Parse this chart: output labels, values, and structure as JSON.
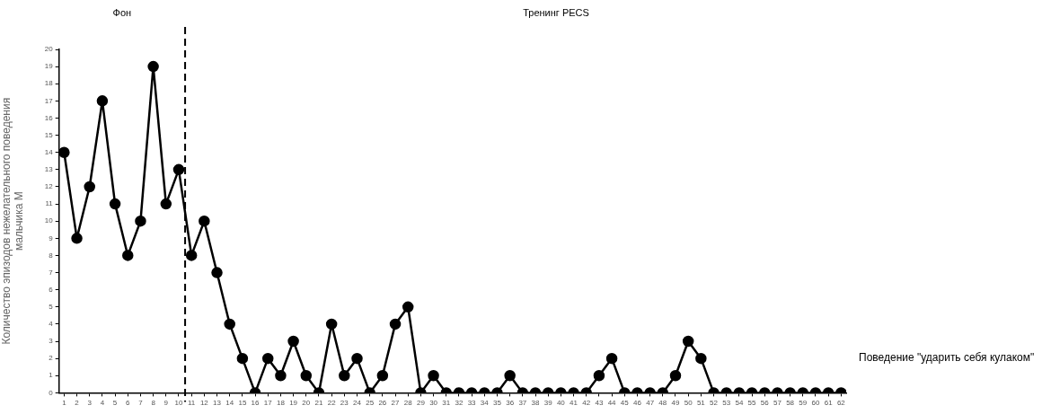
{
  "chart_data": {
    "type": "line",
    "ylabel": "Количество эпизодов нежелательного поведения мальчика М",
    "x": [
      1,
      2,
      3,
      4,
      5,
      6,
      7,
      8,
      9,
      10,
      11,
      12,
      13,
      14,
      15,
      16,
      17,
      18,
      19,
      20,
      21,
      22,
      23,
      24,
      25,
      26,
      27,
      28,
      29,
      30,
      31,
      32,
      33,
      34,
      35,
      36,
      37,
      38,
      39,
      40,
      41,
      42,
      43,
      44,
      45,
      46,
      47,
      48,
      49,
      50,
      51,
      52,
      53,
      54,
      55,
      56,
      57,
      58,
      59,
      60,
      61,
      62
    ],
    "series": [
      {
        "name": "Поведение \"ударить себя кулаком\"",
        "color": "#000000",
        "values": [
          14,
          9,
          12,
          17,
          11,
          8,
          10,
          19,
          11,
          13,
          8,
          10,
          7,
          4,
          2,
          0,
          2,
          1,
          3,
          1,
          0,
          4,
          1,
          2,
          0,
          1,
          4,
          5,
          0,
          1,
          0,
          0,
          0,
          0,
          0,
          1,
          0,
          0,
          0,
          0,
          0,
          0,
          1,
          2,
          0,
          0,
          0,
          0,
          1,
          3,
          2,
          0,
          0,
          0,
          0,
          0,
          0,
          0,
          0,
          0,
          0,
          0
        ]
      }
    ],
    "xlim": [
      0.6,
      62.4
    ],
    "xticks": [
      1,
      2,
      3,
      4,
      5,
      6,
      7,
      8,
      9,
      10,
      11,
      12,
      13,
      14,
      15,
      16,
      17,
      18,
      19,
      20,
      21,
      22,
      23,
      24,
      25,
      26,
      27,
      28,
      29,
      30,
      31,
      32,
      33,
      34,
      35,
      36,
      37,
      38,
      39,
      40,
      41,
      42,
      43,
      44,
      45,
      46,
      47,
      48,
      49,
      50,
      51,
      52,
      53,
      54,
      55,
      56,
      57,
      58,
      59,
      60,
      61,
      62
    ],
    "ylim": [
      0,
      20
    ],
    "yticks": [
      0,
      1,
      2,
      3,
      4,
      5,
      6,
      7,
      8,
      9,
      10,
      11,
      12,
      13,
      14,
      15,
      16,
      17,
      18,
      19,
      20
    ],
    "ref_lines": [
      {
        "axis": "x",
        "value": 10.5,
        "color": "#000000",
        "line_style": "dashed"
      }
    ],
    "annotations": [
      "Фон",
      "Тренинг PECS"
    ],
    "marker": "circle",
    "line_style": "solid",
    "grid": false
  }
}
